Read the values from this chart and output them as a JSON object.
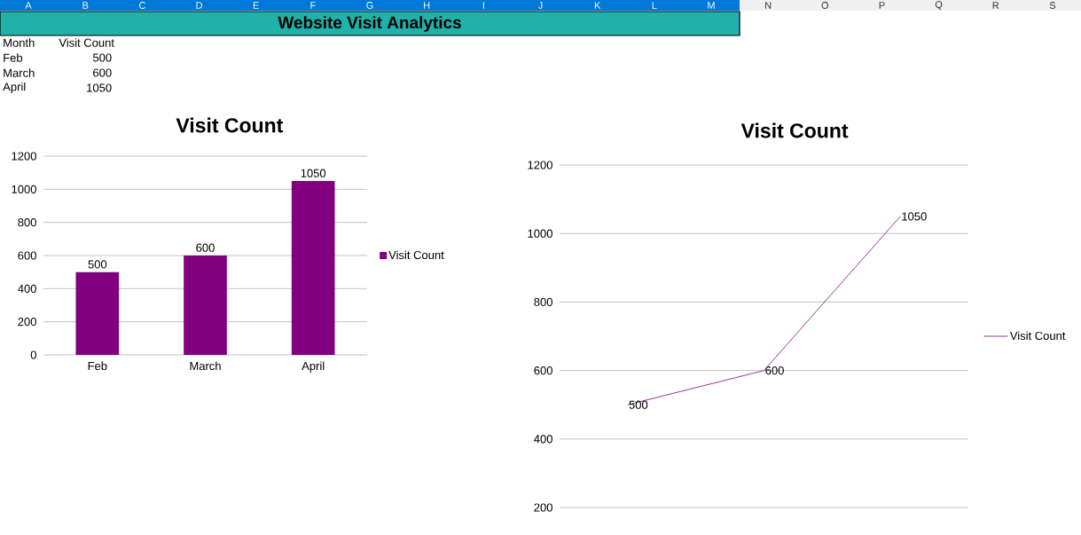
{
  "chart_data": [
    {
      "type": "other",
      "title": "Website Visit Analytics",
      "categories": [
        "A",
        "B",
        "C",
        "D",
        "E",
        "F",
        "G",
        "H",
        "I",
        "J",
        "K",
        "L",
        "M",
        "N",
        "O",
        "P",
        "Q",
        "R",
        "S"
      ],
      "annotations": [
        "Month",
        "Visit Count",
        "Feb",
        "500",
        "March",
        "600",
        "April",
        "1050"
      ]
    },
    {
      "type": "bar",
      "title": "Visit Count",
      "categories": [
        "Feb",
        "March",
        "April"
      ],
      "series": [
        {
          "name": "Visit Count",
          "color": "#800080",
          "values": [
            500,
            600,
            1050
          ]
        }
      ],
      "ylim": [
        0,
        1200
      ],
      "yticks": [
        0,
        200,
        400,
        600,
        800,
        1000,
        1200
      ],
      "grid": "y",
      "legend": "right",
      "data_labels": true
    },
    {
      "type": "line",
      "title": "Visit Count",
      "categories": [
        null,
        null,
        null
      ],
      "series": [
        {
          "name": "Visit Count",
          "color": "#800080",
          "values": [
            500,
            600,
            1050
          ]
        }
      ],
      "ylim": [
        200,
        1200
      ],
      "yticks": [
        200,
        400,
        600,
        800,
        1000,
        1200
      ],
      "grid": "y",
      "legend": "right",
      "data_labels": true,
      "marker": "none",
      "line_style": "solid"
    }
  ]
}
